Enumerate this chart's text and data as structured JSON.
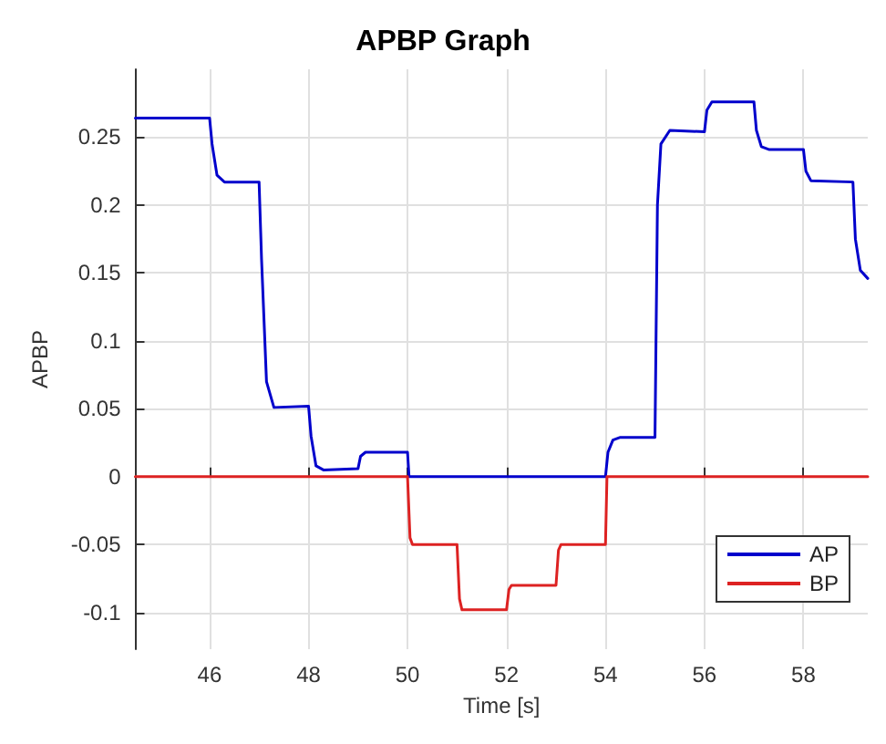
{
  "chart_data": {
    "type": "line",
    "title": "APBP Graph",
    "xlabel": "Time [s]",
    "ylabel": "APBP",
    "xlim": [
      44.5,
      59.3
    ],
    "xticks": [
      46,
      48,
      50,
      52,
      54,
      56,
      58
    ],
    "ylim": [
      -0.127,
      0.3
    ],
    "yticks": [
      -0.1,
      -0.05,
      0,
      0.05,
      0.1,
      0.15,
      0.2,
      0.25
    ],
    "grid": true,
    "legend": "bottom right",
    "marker": "none",
    "line_style": "solid",
    "series": [
      {
        "name": "AP",
        "color": "#0000cc",
        "x": [
          44.5,
          46,
          46.05,
          46.15,
          46.3,
          47,
          47.05,
          47.15,
          47.3,
          48,
          48.05,
          48.15,
          48.3,
          49,
          49.05,
          49.15,
          50,
          50.03,
          54,
          54.05,
          54.15,
          54.3,
          55,
          55.05,
          55.12,
          55.3,
          56,
          56.05,
          56.15,
          57,
          57.05,
          57.15,
          57.3,
          58,
          58.05,
          58.15,
          59,
          59.05,
          59.15,
          59.3
        ],
        "values": [
          0.264,
          0.264,
          0.245,
          0.222,
          0.217,
          0.217,
          0.16,
          0.07,
          0.051,
          0.052,
          0.03,
          0.008,
          0.005,
          0.006,
          0.015,
          0.018,
          0.018,
          0,
          0,
          0.018,
          0.027,
          0.029,
          0.029,
          0.2,
          0.245,
          0.255,
          0.254,
          0.27,
          0.276,
          0.276,
          0.255,
          0.243,
          0.241,
          0.241,
          0.225,
          0.218,
          0.217,
          0.175,
          0.152,
          0.146
        ]
      },
      {
        "name": "BP",
        "color": "#dd2222",
        "x": [
          44.5,
          50,
          50.05,
          50.1,
          51,
          51.05,
          51.1,
          52,
          52.05,
          52.1,
          53,
          53.05,
          53.1,
          54,
          54.03,
          59.3
        ],
        "values": [
          0,
          0,
          -0.045,
          -0.05,
          -0.05,
          -0.09,
          -0.098,
          -0.098,
          -0.083,
          -0.08,
          -0.08,
          -0.054,
          -0.05,
          -0.05,
          0,
          0
        ]
      }
    ]
  }
}
